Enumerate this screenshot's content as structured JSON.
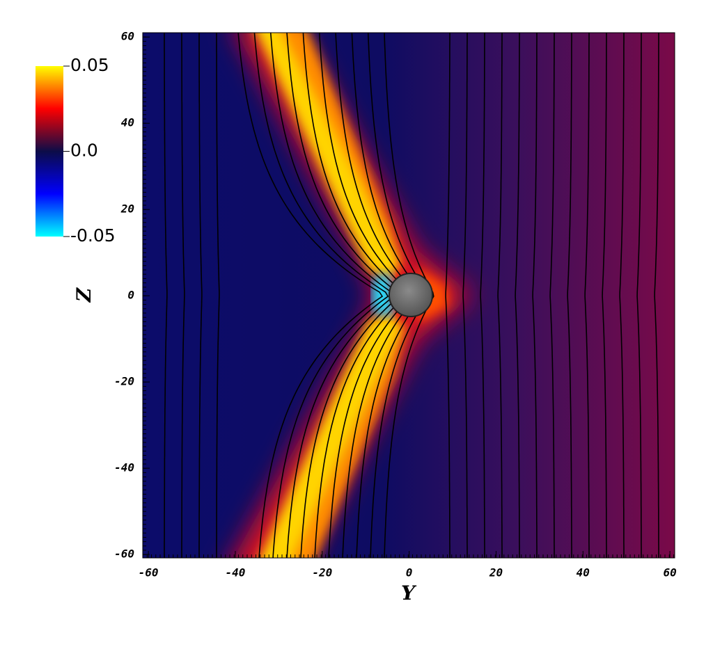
{
  "chart_data": {
    "type": "contour",
    "x_label": "Y",
    "y_label": "Z",
    "xlim": [
      -61.3,
      61.1
    ],
    "ylim": [
      -60.8,
      61
    ],
    "xticks": [
      -60,
      -40,
      -20,
      0,
      20,
      40,
      60
    ],
    "yticks": [
      -60,
      -40,
      -20,
      0,
      20,
      40,
      60
    ],
    "colorbar": {
      "lim": [
        -0.05,
        0.05
      ],
      "ticks": [
        0.05,
        {
          "value": 0,
          "label": "0.0"
        },
        -0.05
      ],
      "colormap": [
        "#00ffff",
        "#0000ff",
        "#0c0c48",
        "#ff0000",
        "#ffff00"
      ]
    }
  }
}
